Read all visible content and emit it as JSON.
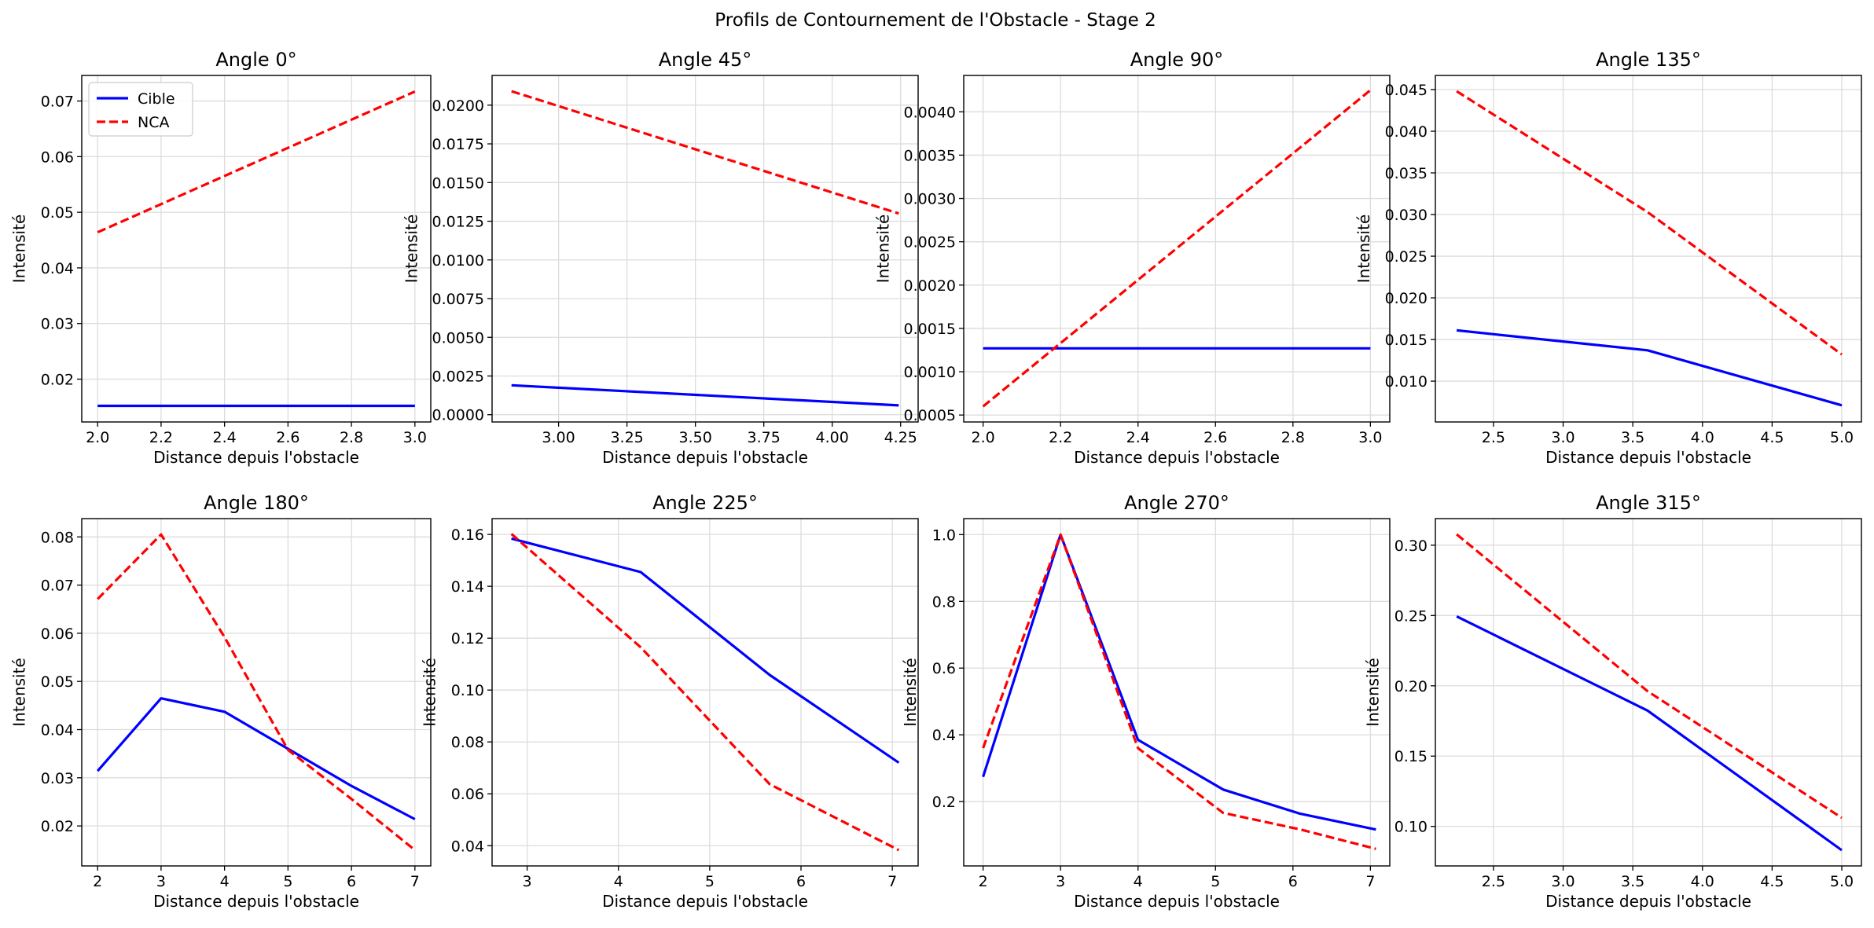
{
  "figure": {
    "suptitle": "Profils de Contournement de l'Obstacle - Stage 2",
    "colors": {
      "cible": "#0000ff",
      "nca": "#ff0000"
    },
    "legend": {
      "placement": "upper-left",
      "entries": [
        "Cible",
        "NCA"
      ]
    }
  },
  "chart_data": [
    {
      "type": "line",
      "title": "Angle 0°",
      "xlabel": "Distance depuis l'obstacle",
      "ylabel": "Intensité",
      "xlim": [
        1.95,
        3.05
      ],
      "ylim": [
        0.0123,
        0.0746
      ],
      "xticks": [
        2.0,
        2.2,
        2.4,
        2.6,
        2.8,
        3.0
      ],
      "xtick_labels": [
        "2.0",
        "2.2",
        "2.4",
        "2.6",
        "2.8",
        "3.0"
      ],
      "yticks": [
        0.02,
        0.03,
        0.04,
        0.05,
        0.06,
        0.07
      ],
      "ytick_labels": [
        "0.02",
        "0.03",
        "0.04",
        "0.05",
        "0.06",
        "0.07"
      ],
      "grid": true,
      "legend": true,
      "series": [
        {
          "name": "Cible",
          "style": "solid",
          "x": [
            2.0,
            3.0
          ],
          "y": [
            0.0152,
            0.0152
          ]
        },
        {
          "name": "NCA",
          "style": "dashed",
          "x": [
            2.0,
            3.0
          ],
          "y": [
            0.0464,
            0.0717
          ]
        }
      ]
    },
    {
      "type": "line",
      "title": "Angle 45°",
      "xlabel": "Distance depuis l'obstacle",
      "ylabel": "Intensité",
      "xlim": [
        2.757,
        4.314
      ],
      "ylim": [
        -0.00047,
        0.02192
      ],
      "xticks": [
        3.0,
        3.25,
        3.5,
        3.75,
        4.0,
        4.25
      ],
      "xtick_labels": [
        "3.00",
        "3.25",
        "3.50",
        "3.75",
        "4.00",
        "4.25"
      ],
      "yticks": [
        0.0,
        0.0025,
        0.005,
        0.0075,
        0.01,
        0.0125,
        0.015,
        0.0175,
        0.02
      ],
      "ytick_labels": [
        "0.0000",
        "0.0025",
        "0.0050",
        "0.0075",
        "0.0100",
        "0.0125",
        "0.0150",
        "0.0175",
        "0.0200"
      ],
      "grid": true,
      "legend": false,
      "series": [
        {
          "name": "Cible",
          "style": "solid",
          "x": [
            2.828,
            4.243
          ],
          "y": [
            0.0019,
            0.0006
          ]
        },
        {
          "name": "NCA",
          "style": "dashed",
          "x": [
            2.828,
            4.243
          ],
          "y": [
            0.0209,
            0.013
          ]
        }
      ]
    },
    {
      "type": "line",
      "title": "Angle 90°",
      "xlabel": "Distance depuis l'obstacle",
      "ylabel": "Intensité",
      "xlim": [
        1.95,
        3.05
      ],
      "ylim": [
        0.00042,
        0.00442
      ],
      "xticks": [
        2.0,
        2.2,
        2.4,
        2.6,
        2.8,
        3.0
      ],
      "xtick_labels": [
        "2.0",
        "2.2",
        "2.4",
        "2.6",
        "2.8",
        "3.0"
      ],
      "yticks": [
        0.0005,
        0.001,
        0.0015,
        0.002,
        0.0025,
        0.003,
        0.0035,
        0.004
      ],
      "ytick_labels": [
        "0.0005",
        "0.0010",
        "0.0015",
        "0.0020",
        "0.0025",
        "0.0030",
        "0.0035",
        "0.0040"
      ],
      "grid": true,
      "legend": false,
      "series": [
        {
          "name": "Cible",
          "style": "solid",
          "x": [
            2.0,
            3.0
          ],
          "y": [
            0.00127,
            0.00127
          ]
        },
        {
          "name": "NCA",
          "style": "dashed",
          "x": [
            2.0,
            3.0
          ],
          "y": [
            0.0006,
            0.00425
          ]
        }
      ]
    },
    {
      "type": "line",
      "title": "Angle 135°",
      "xlabel": "Distance depuis l'obstacle",
      "ylabel": "Intensité",
      "xlim": [
        2.083,
        5.141
      ],
      "ylim": [
        0.0051,
        0.0467
      ],
      "xticks": [
        2.5,
        3.0,
        3.5,
        4.0,
        4.5,
        5.0
      ],
      "xtick_labels": [
        "2.5",
        "3.0",
        "3.5",
        "4.0",
        "4.5",
        "5.0"
      ],
      "yticks": [
        0.01,
        0.015,
        0.02,
        0.025,
        0.03,
        0.035,
        0.04,
        0.045
      ],
      "ytick_labels": [
        "0.010",
        "0.015",
        "0.020",
        "0.025",
        "0.030",
        "0.035",
        "0.040",
        "0.045"
      ],
      "grid": true,
      "legend": false,
      "series": [
        {
          "name": "Cible",
          "style": "solid",
          "x": [
            2.236,
            3.606,
            5.0
          ],
          "y": [
            0.0161,
            0.0137,
            0.0071
          ]
        },
        {
          "name": "NCA",
          "style": "dashed",
          "x": [
            2.236,
            3.606,
            5.0
          ],
          "y": [
            0.0448,
            0.0303,
            0.0132
          ]
        }
      ]
    },
    {
      "type": "line",
      "title": "Angle 180°",
      "xlabel": "Distance depuis l'obstacle",
      "ylabel": "Intensité",
      "xlim": [
        1.75,
        7.25
      ],
      "ylim": [
        0.0117,
        0.0838
      ],
      "xticks": [
        2,
        3,
        4,
        5,
        6,
        7
      ],
      "xtick_labels": [
        "2",
        "3",
        "4",
        "5",
        "6",
        "7"
      ],
      "yticks": [
        0.02,
        0.03,
        0.04,
        0.05,
        0.06,
        0.07,
        0.08
      ],
      "ytick_labels": [
        "0.02",
        "0.03",
        "0.04",
        "0.05",
        "0.06",
        "0.07",
        "0.08"
      ],
      "grid": true,
      "legend": false,
      "series": [
        {
          "name": "Cible",
          "style": "solid",
          "x": [
            2,
            3,
            4,
            5,
            6,
            7
          ],
          "y": [
            0.0314,
            0.0465,
            0.0437,
            0.036,
            0.0283,
            0.0214
          ]
        },
        {
          "name": "NCA",
          "style": "dashed",
          "x": [
            2,
            3,
            4,
            5,
            6,
            7
          ],
          "y": [
            0.0671,
            0.0805,
            0.0592,
            0.0358,
            0.0256,
            0.015
          ]
        }
      ]
    },
    {
      "type": "line",
      "title": "Angle 225°",
      "xlabel": "Distance depuis l'obstacle",
      "ylabel": "Intensité",
      "xlim": [
        2.616,
        7.283
      ],
      "ylim": [
        0.0322,
        0.1661
      ],
      "xticks": [
        3,
        4,
        5,
        6,
        7
      ],
      "xtick_labels": [
        "3",
        "4",
        "5",
        "6",
        "7"
      ],
      "yticks": [
        0.04,
        0.06,
        0.08,
        0.1,
        0.12,
        0.14,
        0.16
      ],
      "ytick_labels": [
        "0.04",
        "0.06",
        "0.08",
        "0.10",
        "0.12",
        "0.14",
        "0.16"
      ],
      "grid": true,
      "legend": false,
      "series": [
        {
          "name": "Cible",
          "style": "solid",
          "x": [
            2.828,
            4.243,
            5.657,
            7.071
          ],
          "y": [
            0.1584,
            0.1455,
            0.1058,
            0.072
          ]
        },
        {
          "name": "NCA",
          "style": "dashed",
          "x": [
            2.828,
            4.243,
            5.657,
            7.071
          ],
          "y": [
            0.1602,
            0.1165,
            0.0637,
            0.0383
          ]
        }
      ]
    },
    {
      "type": "line",
      "title": "Angle 270°",
      "xlabel": "Distance depuis l'obstacle",
      "ylabel": "Intensité",
      "xlim": [
        1.75,
        7.25
      ],
      "ylim": [
        0.007,
        1.048
      ],
      "xticks": [
        2,
        3,
        4,
        5,
        6,
        7
      ],
      "xtick_labels": [
        "2",
        "3",
        "4",
        "5",
        "6",
        "7"
      ],
      "yticks": [
        0.2,
        0.4,
        0.6,
        0.8,
        1.0
      ],
      "ytick_labels": [
        "0.2",
        "0.4",
        "0.6",
        "0.8",
        "1.0"
      ],
      "grid": true,
      "legend": false,
      "series": [
        {
          "name": "Cible",
          "style": "solid",
          "x": [
            2,
            3,
            4,
            5.099,
            6.083,
            7.071
          ],
          "y": [
            0.274,
            1.0,
            0.385,
            0.236,
            0.164,
            0.116
          ]
        },
        {
          "name": "NCA",
          "style": "dashed",
          "x": [
            2,
            3,
            4,
            5.099,
            6.083,
            7.071
          ],
          "y": [
            0.36,
            1.0,
            0.36,
            0.166,
            0.117,
            0.058
          ]
        }
      ]
    },
    {
      "type": "line",
      "title": "Angle 315°",
      "xlabel": "Distance depuis l'obstacle",
      "ylabel": "Intensité",
      "xlim": [
        2.083,
        5.141
      ],
      "ylim": [
        0.0719,
        0.3189
      ],
      "xticks": [
        2.5,
        3.0,
        3.5,
        4.0,
        4.5,
        5.0
      ],
      "xtick_labels": [
        "2.5",
        "3.0",
        "3.5",
        "4.0",
        "4.5",
        "5.0"
      ],
      "yticks": [
        0.1,
        0.15,
        0.2,
        0.25,
        0.3
      ],
      "ytick_labels": [
        "0.10",
        "0.15",
        "0.20",
        "0.25",
        "0.30"
      ],
      "grid": true,
      "legend": false,
      "series": [
        {
          "name": "Cible",
          "style": "solid",
          "x": [
            2.236,
            3.606,
            5.0
          ],
          "y": [
            0.2494,
            0.1824,
            0.0831
          ]
        },
        {
          "name": "NCA",
          "style": "dashed",
          "x": [
            2.236,
            3.606,
            5.0
          ],
          "y": [
            0.3077,
            0.1962,
            0.1061
          ]
        }
      ]
    }
  ]
}
